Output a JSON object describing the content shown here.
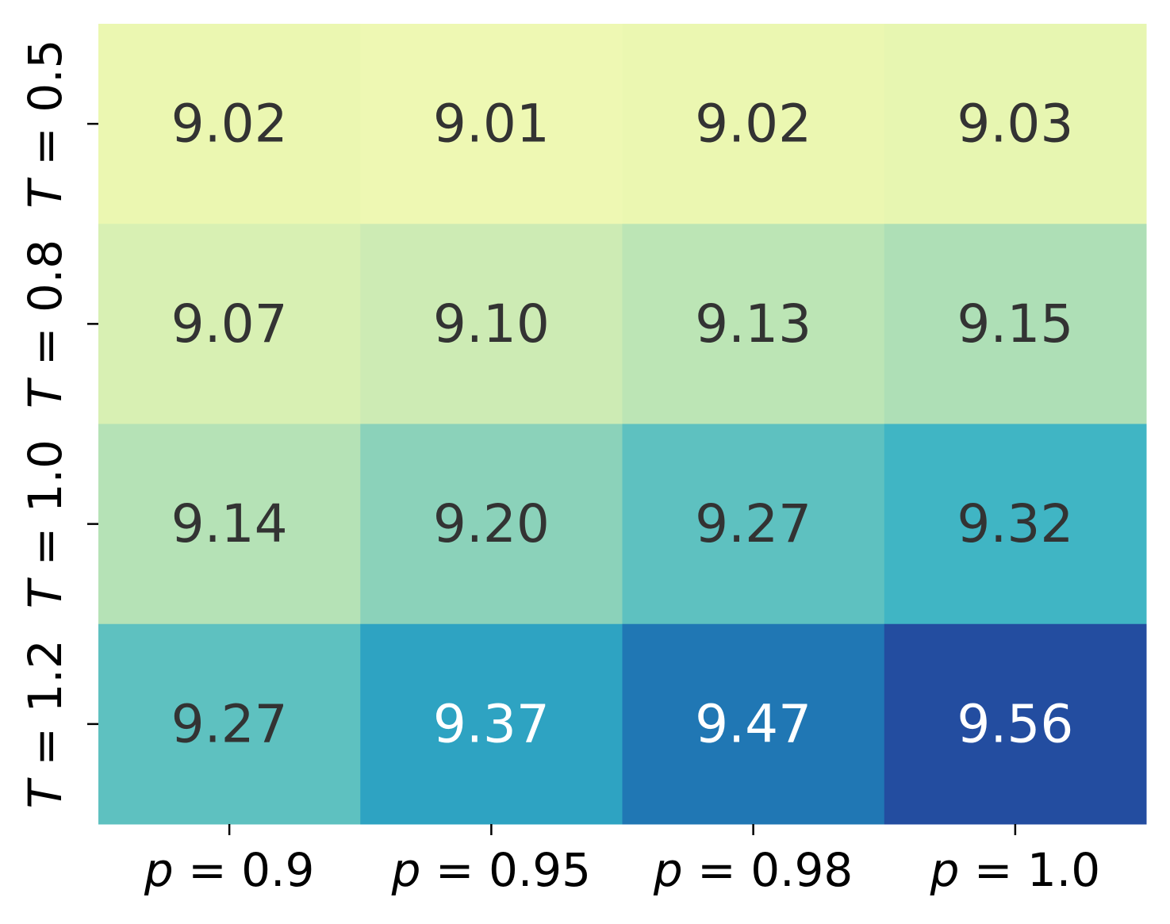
{
  "chart_data": {
    "type": "heatmap",
    "title": "",
    "xlabel": "",
    "ylabel": "",
    "x_categories": [
      {
        "var": "p",
        "eq": " = ",
        "val": "0.9"
      },
      {
        "var": "p",
        "eq": " = ",
        "val": "0.95"
      },
      {
        "var": "p",
        "eq": " = ",
        "val": "0.98"
      },
      {
        "var": "p",
        "eq": " = ",
        "val": "1.0"
      }
    ],
    "y_categories": [
      {
        "var": "T",
        "eq": " = ",
        "val": "0.5"
      },
      {
        "var": "T",
        "eq": " = ",
        "val": "0.8"
      },
      {
        "var": "T",
        "eq": " = ",
        "val": "1.0"
      },
      {
        "var": "T",
        "eq": " = ",
        "val": "1.2"
      }
    ],
    "values": [
      [
        9.02,
        9.01,
        9.02,
        9.03
      ],
      [
        9.07,
        9.1,
        9.13,
        9.15
      ],
      [
        9.14,
        9.2,
        9.27,
        9.32
      ],
      [
        9.27,
        9.37,
        9.47,
        9.56
      ]
    ],
    "value_labels": [
      [
        "9.02",
        "9.01",
        "9.02",
        "9.03"
      ],
      [
        "9.07",
        "9.10",
        "9.13",
        "9.15"
      ],
      [
        "9.14",
        "9.20",
        "9.27",
        "9.32"
      ],
      [
        "9.27",
        "9.37",
        "9.47",
        "9.56"
      ]
    ],
    "colormap": "YlGnBu",
    "colorbar": false,
    "grid": false,
    "colors": {
      "text_dark": "#333333",
      "text_light": "#ffffff"
    }
  }
}
